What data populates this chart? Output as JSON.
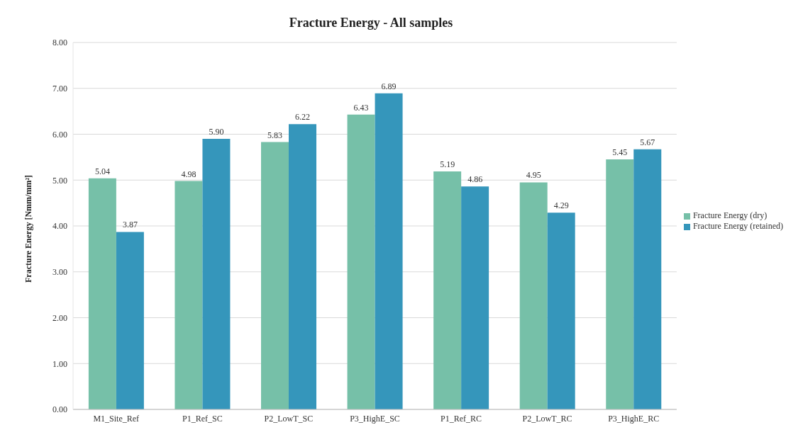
{
  "chart_data": {
    "type": "bar",
    "title": "Fracture Energy - All samples",
    "ylabel": "Fracture Energy [Nmm/mm²]",
    "categories": [
      "M1_Site_Ref",
      "P1_Ref_SC",
      "P2_LowT_SC",
      "P3_HighE_SC",
      "P1_Ref_RC",
      "P2_LowT_RC",
      "P3_HighE_RC"
    ],
    "series": [
      {
        "name": "Fracture Energy (dry)",
        "color": "#76c0a8",
        "values": [
          5.04,
          4.98,
          5.83,
          6.43,
          5.19,
          4.95,
          5.45
        ],
        "value_labels": [
          "5.04",
          "4.98",
          "5.83",
          "6.43",
          "5.19",
          "4.95",
          "5.45"
        ]
      },
      {
        "name": "Fracture Energy (retained)",
        "color": "#3596bb",
        "values": [
          3.87,
          5.9,
          6.22,
          6.89,
          4.86,
          4.29,
          5.67
        ],
        "value_labels": [
          "3.87",
          "5.90",
          "6.22",
          "6.89",
          "4.86",
          "4.29",
          "5.67"
        ]
      }
    ],
    "ylim": [
      0,
      8
    ],
    "yticks": [
      {
        "value": 0,
        "label": "0.00"
      },
      {
        "value": 1,
        "label": "1.00"
      },
      {
        "value": 2,
        "label": "2.00"
      },
      {
        "value": 3,
        "label": "3.00"
      },
      {
        "value": 4,
        "label": "4.00"
      },
      {
        "value": 5,
        "label": "5.00"
      },
      {
        "value": 6,
        "label": "6.00"
      },
      {
        "value": 7,
        "label": "7.00"
      },
      {
        "value": 8,
        "label": "8.00"
      }
    ],
    "grid": "y",
    "legend": "right"
  }
}
